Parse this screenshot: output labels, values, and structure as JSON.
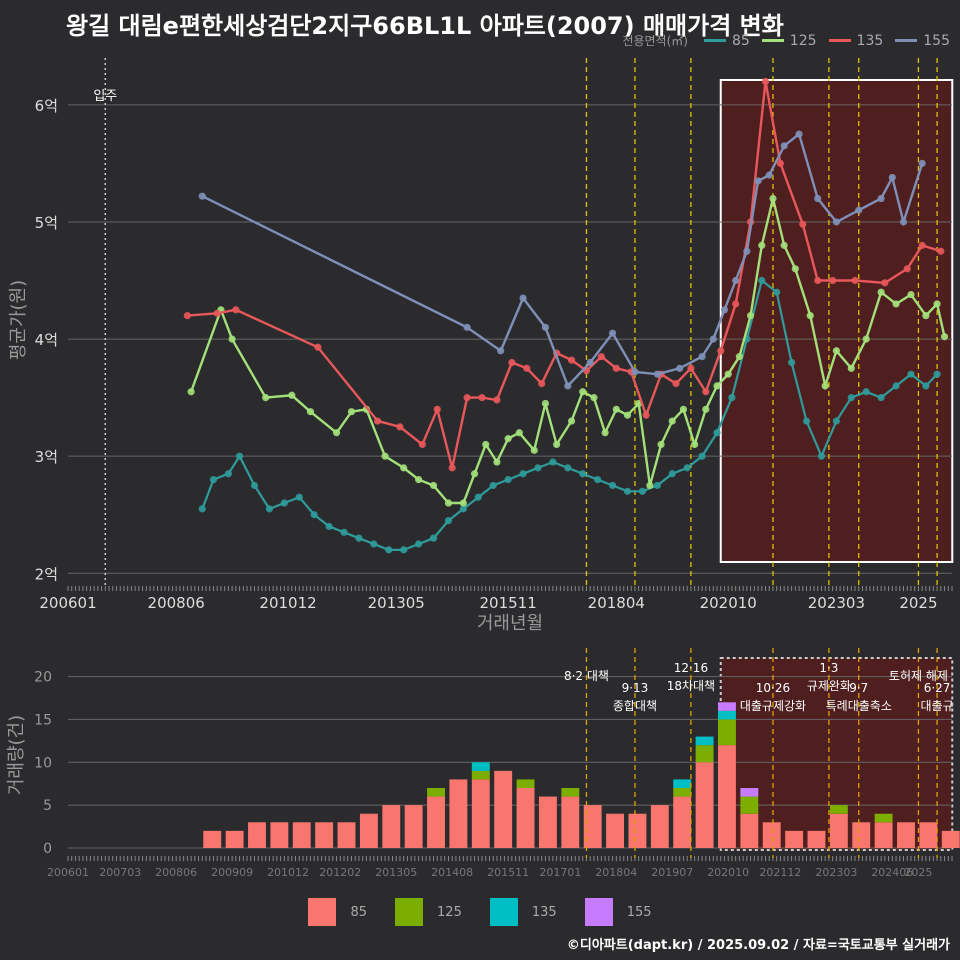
{
  "title": "왕길 대림e편한세상검단2지구66BL1L 아파트(2007) 매매가격 변화",
  "footer": "©디아파트(dapt.kr) / 2025.09.02 / 자료=국토교통부 실거래가",
  "legend_top": {
    "title": "전용면적(㎡)",
    "items": [
      {
        "label": "85",
        "color": "#2f9b9b"
      },
      {
        "label": "125",
        "color": "#a3e07a"
      },
      {
        "label": "135",
        "color": "#e8585a"
      },
      {
        "label": "155",
        "color": "#7f90b8"
      }
    ]
  },
  "legend_bottom": {
    "items": [
      {
        "label": "85",
        "color": "#f8766d"
      },
      {
        "label": "125",
        "color": "#7cae00"
      },
      {
        "label": "135",
        "color": "#00bfc4"
      },
      {
        "label": "155",
        "color": "#c77cff"
      }
    ]
  },
  "chart_data": [
    {
      "type": "line",
      "xlabel": "거래년월",
      "ylabel": "평균가(원)",
      "x_ticks": [
        "200601",
        "200806",
        "201012",
        "201305",
        "201511",
        "201804",
        "202010",
        "202303",
        "2025"
      ],
      "y_ticks": [
        "2억",
        "3억",
        "4억",
        "5억",
        "6억"
      ],
      "y_values_unit": "억",
      "ylim": [
        1.9,
        6.4
      ],
      "grid": true,
      "move_in_label": "입주",
      "move_in_date": "2006.11",
      "series": [
        {
          "name": "85",
          "color": "#2f9b9b",
          "points": [
            [
              "2009.01",
              2.55
            ],
            [
              "2009.04",
              2.8
            ],
            [
              "2009.08",
              2.85
            ],
            [
              "2009.11",
              3.0
            ],
            [
              "2010.03",
              2.75
            ],
            [
              "2010.07",
              2.55
            ],
            [
              "2010.11",
              2.6
            ],
            [
              "2011.03",
              2.65
            ],
            [
              "2011.07",
              2.5
            ],
            [
              "2011.11",
              2.4
            ],
            [
              "2012.03",
              2.35
            ],
            [
              "2012.07",
              2.3
            ],
            [
              "2012.11",
              2.25
            ],
            [
              "2013.03",
              2.2
            ],
            [
              "2013.07",
              2.2
            ],
            [
              "2013.11",
              2.25
            ],
            [
              "2014.03",
              2.3
            ],
            [
              "2014.07",
              2.45
            ],
            [
              "2014.11",
              2.55
            ],
            [
              "2015.03",
              2.65
            ],
            [
              "2015.07",
              2.75
            ],
            [
              "2015.11",
              2.8
            ],
            [
              "2016.03",
              2.85
            ],
            [
              "2016.07",
              2.9
            ],
            [
              "2016.11",
              2.95
            ],
            [
              "2017.03",
              2.9
            ],
            [
              "2017.07",
              2.85
            ],
            [
              "2017.11",
              2.8
            ],
            [
              "2018.03",
              2.75
            ],
            [
              "2018.07",
              2.7
            ],
            [
              "2018.11",
              2.7
            ],
            [
              "2019.03",
              2.75
            ],
            [
              "2019.07",
              2.85
            ],
            [
              "2019.11",
              2.9
            ],
            [
              "2020.03",
              3.0
            ],
            [
              "2020.07",
              3.2
            ],
            [
              "2020.11",
              3.5
            ],
            [
              "2021.03",
              4.0
            ],
            [
              "2021.07",
              4.5
            ],
            [
              "2021.11",
              4.4
            ],
            [
              "2022.03",
              3.8
            ],
            [
              "2022.07",
              3.3
            ],
            [
              "2022.11",
              3.0
            ],
            [
              "2023.03",
              3.3
            ],
            [
              "2023.07",
              3.5
            ],
            [
              "2023.11",
              3.55
            ],
            [
              "2024.03",
              3.5
            ],
            [
              "2024.07",
              3.6
            ],
            [
              "2024.11",
              3.7
            ],
            [
              "2025.03",
              3.6
            ],
            [
              "2025.06",
              3.7
            ]
          ]
        },
        {
          "name": "125",
          "color": "#a3e07a",
          "points": [
            [
              "2008.10",
              3.55
            ],
            [
              "2009.06",
              4.25
            ],
            [
              "2009.09",
              4.0
            ],
            [
              "2010.06",
              3.5
            ],
            [
              "2011.01",
              3.52
            ],
            [
              "2011.06",
              3.38
            ],
            [
              "2012.01",
              3.2
            ],
            [
              "2012.05",
              3.38
            ],
            [
              "2012.09",
              3.4
            ],
            [
              "2013.02",
              3.0
            ],
            [
              "2013.07",
              2.9
            ],
            [
              "2013.11",
              2.8
            ],
            [
              "2014.03",
              2.75
            ],
            [
              "2014.07",
              2.6
            ],
            [
              "2014.11",
              2.6
            ],
            [
              "2015.02",
              2.85
            ],
            [
              "2015.05",
              3.1
            ],
            [
              "2015.08",
              2.95
            ],
            [
              "2015.11",
              3.15
            ],
            [
              "2016.02",
              3.2
            ],
            [
              "2016.06",
              3.05
            ],
            [
              "2016.09",
              3.45
            ],
            [
              "2016.12",
              3.1
            ],
            [
              "2017.04",
              3.3
            ],
            [
              "2017.07",
              3.55
            ],
            [
              "2017.10",
              3.5
            ],
            [
              "2018.01",
              3.2
            ],
            [
              "2018.04",
              3.4
            ],
            [
              "2018.07",
              3.35
            ],
            [
              "2018.10",
              3.45
            ],
            [
              "2019.01",
              2.75
            ],
            [
              "2019.04",
              3.1
            ],
            [
              "2019.07",
              3.3
            ],
            [
              "2019.10",
              3.4
            ],
            [
              "2020.01",
              3.1
            ],
            [
              "2020.04",
              3.4
            ],
            [
              "2020.07",
              3.6
            ],
            [
              "2020.10",
              3.7
            ],
            [
              "2021.01",
              3.85
            ],
            [
              "2021.04",
              4.2
            ],
            [
              "2021.07",
              4.8
            ],
            [
              "2021.10",
              5.2
            ],
            [
              "2022.01",
              4.8
            ],
            [
              "2022.04",
              4.6
            ],
            [
              "2022.08",
              4.2
            ],
            [
              "2022.12",
              3.6
            ],
            [
              "2023.03",
              3.9
            ],
            [
              "2023.07",
              3.75
            ],
            [
              "2023.11",
              4.0
            ],
            [
              "2024.03",
              4.4
            ],
            [
              "2024.07",
              4.3
            ],
            [
              "2024.11",
              4.38
            ],
            [
              "2025.03",
              4.2
            ],
            [
              "2025.06",
              4.3
            ],
            [
              "2025.08",
              4.02
            ]
          ]
        },
        {
          "name": "135",
          "color": "#e8585a",
          "points": [
            [
              "2008.09",
              4.2
            ],
            [
              "2009.05",
              4.22
            ],
            [
              "2009.10",
              4.25
            ],
            [
              "2011.08",
              3.93
            ],
            [
              "2012.12",
              3.3
            ],
            [
              "2013.06",
              3.25
            ],
            [
              "2013.12",
              3.1
            ],
            [
              "2014.04",
              3.4
            ],
            [
              "2014.08",
              2.9
            ],
            [
              "2014.12",
              3.5
            ],
            [
              "2015.04",
              3.5
            ],
            [
              "2015.08",
              3.48
            ],
            [
              "2015.12",
              3.8
            ],
            [
              "2016.04",
              3.75
            ],
            [
              "2016.08",
              3.62
            ],
            [
              "2016.12",
              3.88
            ],
            [
              "2017.04",
              3.82
            ],
            [
              "2017.08",
              3.73
            ],
            [
              "2017.12",
              3.85
            ],
            [
              "2018.04",
              3.75
            ],
            [
              "2018.08",
              3.72
            ],
            [
              "2018.12",
              3.35
            ],
            [
              "2019.04",
              3.7
            ],
            [
              "2019.08",
              3.62
            ],
            [
              "2019.12",
              3.75
            ],
            [
              "2020.04",
              3.55
            ],
            [
              "2020.08",
              3.9
            ],
            [
              "2020.12",
              4.3
            ],
            [
              "2021.04",
              5.0
            ],
            [
              "2021.08",
              6.2
            ],
            [
              "2021.12",
              5.5
            ],
            [
              "2022.06",
              4.98
            ],
            [
              "2022.10",
              4.5
            ],
            [
              "2023.02",
              4.5
            ],
            [
              "2023.08",
              4.5
            ],
            [
              "2024.04",
              4.48
            ],
            [
              "2024.10",
              4.6
            ],
            [
              "2025.02",
              4.8
            ],
            [
              "2025.07",
              4.75
            ]
          ]
        },
        {
          "name": "155",
          "color": "#7f90b8",
          "points": [
            [
              "2009.01",
              5.22
            ],
            [
              "2014.12",
              4.1
            ],
            [
              "2015.09",
              3.9
            ],
            [
              "2016.03",
              4.35
            ],
            [
              "2016.09",
              4.1
            ],
            [
              "2017.03",
              3.6
            ],
            [
              "2017.09",
              3.8
            ],
            [
              "2018.03",
              4.05
            ],
            [
              "2018.09",
              3.72
            ],
            [
              "2019.03",
              3.7
            ],
            [
              "2019.09",
              3.75
            ],
            [
              "2020.03",
              3.85
            ],
            [
              "2020.06",
              4.0
            ],
            [
              "2020.09",
              4.25
            ],
            [
              "2020.12",
              4.5
            ],
            [
              "2021.03",
              4.75
            ],
            [
              "2021.06",
              5.35
            ],
            [
              "2021.09",
              5.4
            ],
            [
              "2022.01",
              5.65
            ],
            [
              "2022.05",
              5.75
            ],
            [
              "2022.10",
              5.2
            ],
            [
              "2023.03",
              5.0
            ],
            [
              "2023.09",
              5.1
            ],
            [
              "2024.03",
              5.2
            ],
            [
              "2024.06",
              5.38
            ],
            [
              "2024.09",
              5.0
            ],
            [
              "2025.02",
              5.5
            ]
          ]
        }
      ]
    },
    {
      "type": "bar",
      "ylabel": "거래량(건)",
      "x_ticks": [
        "200601",
        "200703",
        "200806",
        "200909",
        "201012",
        "201202",
        "201305",
        "201408",
        "201511",
        "201701",
        "201804",
        "201907",
        "202010",
        "202112",
        "202303",
        "202406",
        "2025"
      ],
      "y_ticks": [
        "0",
        "5",
        "10",
        "15",
        "20"
      ],
      "ylim": [
        0,
        21
      ],
      "stacked": true,
      "series": [
        {
          "name": "85",
          "color": "#f8766d",
          "values_by_half_year": [
            [
              "2009-H1",
              2
            ],
            [
              "2009-H2",
              2
            ],
            [
              "2010-H1",
              3
            ],
            [
              "2010-H2",
              3
            ],
            [
              "2011-H1",
              3
            ],
            [
              "2011-H2",
              3
            ],
            [
              "2012-H1",
              3
            ],
            [
              "2012-H2",
              4
            ],
            [
              "2013-H1",
              5
            ],
            [
              "2013-H2",
              5
            ],
            [
              "2014-H1",
              6
            ],
            [
              "2014-H2",
              8
            ],
            [
              "2015-H1",
              8
            ],
            [
              "2015-H2",
              9
            ],
            [
              "2016-H1",
              7
            ],
            [
              "2016-H2",
              6
            ],
            [
              "2017-H1",
              6
            ],
            [
              "2017-H2",
              5
            ],
            [
              "2018-H1",
              4
            ],
            [
              "2018-H2",
              4
            ],
            [
              "2019-H1",
              5
            ],
            [
              "2019-H2",
              6
            ],
            [
              "2020-H1",
              10
            ],
            [
              "2020-H2",
              12
            ],
            [
              "2021-H1",
              4
            ],
            [
              "2021-H2",
              3
            ],
            [
              "2022-H1",
              2
            ],
            [
              "2022-H2",
              2
            ],
            [
              "2023-H1",
              4
            ],
            [
              "2023-H2",
              3
            ],
            [
              "2024-H1",
              3
            ],
            [
              "2024-H2",
              3
            ],
            [
              "2025-H1",
              3
            ],
            [
              "2025-H2",
              2
            ]
          ]
        },
        {
          "name": "125",
          "color": "#7cae00",
          "values_by_half_year": [
            [
              "2014-H1",
              1
            ],
            [
              "2015-H1",
              1
            ],
            [
              "2016-H1",
              1
            ],
            [
              "2017-H1",
              1
            ],
            [
              "2019-H2",
              1
            ],
            [
              "2020-H1",
              2
            ],
            [
              "2020-H2",
              3
            ],
            [
              "2021-H1",
              2
            ],
            [
              "2023-H1",
              1
            ],
            [
              "2024-H1",
              1
            ]
          ]
        },
        {
          "name": "135",
          "color": "#00bfc4",
          "values_by_half_year": [
            [
              "2015-H1",
              1
            ],
            [
              "2019-H2",
              1
            ],
            [
              "2020-H1",
              1
            ],
            [
              "2020-H2",
              1
            ]
          ]
        },
        {
          "name": "155",
          "color": "#c77cff",
          "values_by_half_year": [
            [
              "2020-H2",
              1
            ],
            [
              "2021-H1",
              1
            ]
          ]
        }
      ]
    }
  ],
  "policy_events": [
    {
      "date": "2017.08",
      "label_top": "",
      "label_bottom": "8·2 대책"
    },
    {
      "date": "2018.09",
      "label_top": "9·13",
      "label_bottom": "종합대책"
    },
    {
      "date": "2019.12",
      "label_top": "12·16",
      "label_bottom": "18차대책"
    },
    {
      "date": "2021.10",
      "label_top": "10·26",
      "label_bottom": "대출규제강화"
    },
    {
      "date": "2023.01",
      "label_top": "1·3",
      "label_bottom": "규제완화"
    },
    {
      "date": "2023.09",
      "label_top": "9·7",
      "label_bottom": "특례대출축소"
    },
    {
      "date": "2025.01",
      "label_top": "",
      "label_bottom": "토허제 해제"
    },
    {
      "date": "2025.06",
      "label_top": "6·27",
      "label_bottom": "대출규"
    }
  ],
  "highlight_period": {
    "start": "2020.08",
    "end": "2025.09"
  }
}
